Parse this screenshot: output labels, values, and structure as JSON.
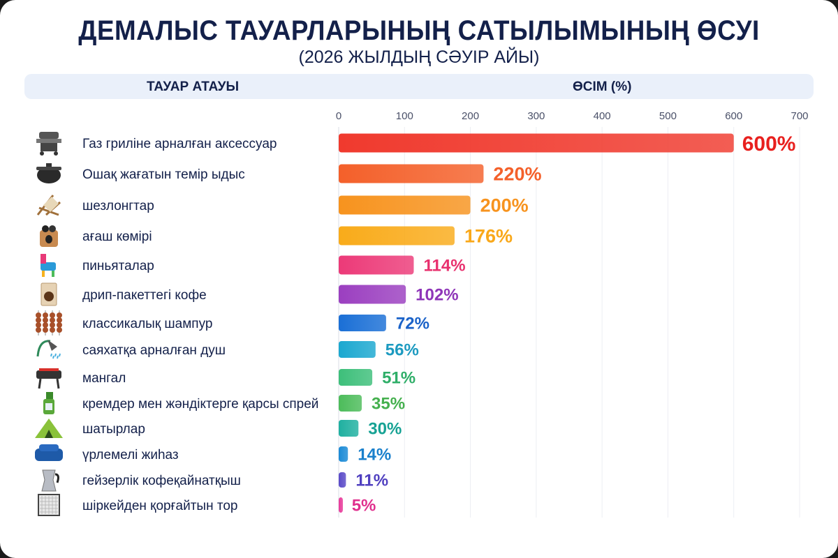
{
  "chart_data": {
    "type": "bar",
    "orientation": "horizontal",
    "title": "ДЕМАЛЫС ТАУАРЛАРЫНЫҢ САТЫЛЫМЫНЫҢ ӨСУІ",
    "subtitle": "(2026 ЖЫЛДЫҢ СӘУІР АЙЫ)",
    "column_headers": {
      "name": "ТАУАР АТАУЫ",
      "growth": "ӨСІМ (%)"
    },
    "xlim": [
      0,
      700
    ],
    "xticks": [
      0,
      100,
      200,
      300,
      400,
      500,
      600,
      700
    ],
    "grid": true,
    "value_suffix": "%",
    "categories": [
      "Газ гриліне арналған аксессуар",
      "Ошақ жағатын темір ыдыс",
      "шезлонгтар",
      "ағаш көмірі",
      "пиньяталар",
      "дрип-пакеттегі кофе",
      "классикалық шампур",
      "саяхатқа арналған душ",
      "мангал",
      "кремдер мен жәндіктерге қарсы спрей",
      "шатырлар",
      "үрлемелі жиһаз",
      "гейзерлік кофеқайнатқыш",
      "шіркейден қорғайтын тор"
    ],
    "values": [
      600,
      220,
      200,
      176,
      114,
      102,
      72,
      56,
      51,
      35,
      30,
      14,
      11,
      5
    ],
    "colors": [
      "#f03a2e",
      "#f4602a",
      "#f7931e",
      "#f9ab1a",
      "#ec3a78",
      "#9b3fc0",
      "#1a6fd6",
      "#1ba8d0",
      "#3dbf7a",
      "#4cbc5a",
      "#1fb0a0",
      "#1a8ad6",
      "#5a4ac8",
      "#e83a9a"
    ],
    "label_colors": [
      "#e8201e",
      "#f4602a",
      "#f7931e",
      "#f9a81a",
      "#e8306e",
      "#8e35b8",
      "#1a62c8",
      "#1c9ac0",
      "#2fae68",
      "#45b04e",
      "#16a294",
      "#1a80cc",
      "#5040c0",
      "#e0308e"
    ],
    "icons": [
      "grill-icon",
      "pot-icon",
      "deck-chair-icon",
      "charcoal-bag-icon",
      "pinata-icon",
      "coffee-bag-icon",
      "skewer-icon",
      "shower-icon",
      "brazier-icon",
      "spray-icon",
      "tent-icon",
      "sofa-icon",
      "moka-pot-icon",
      "mosquito-net-icon"
    ]
  }
}
